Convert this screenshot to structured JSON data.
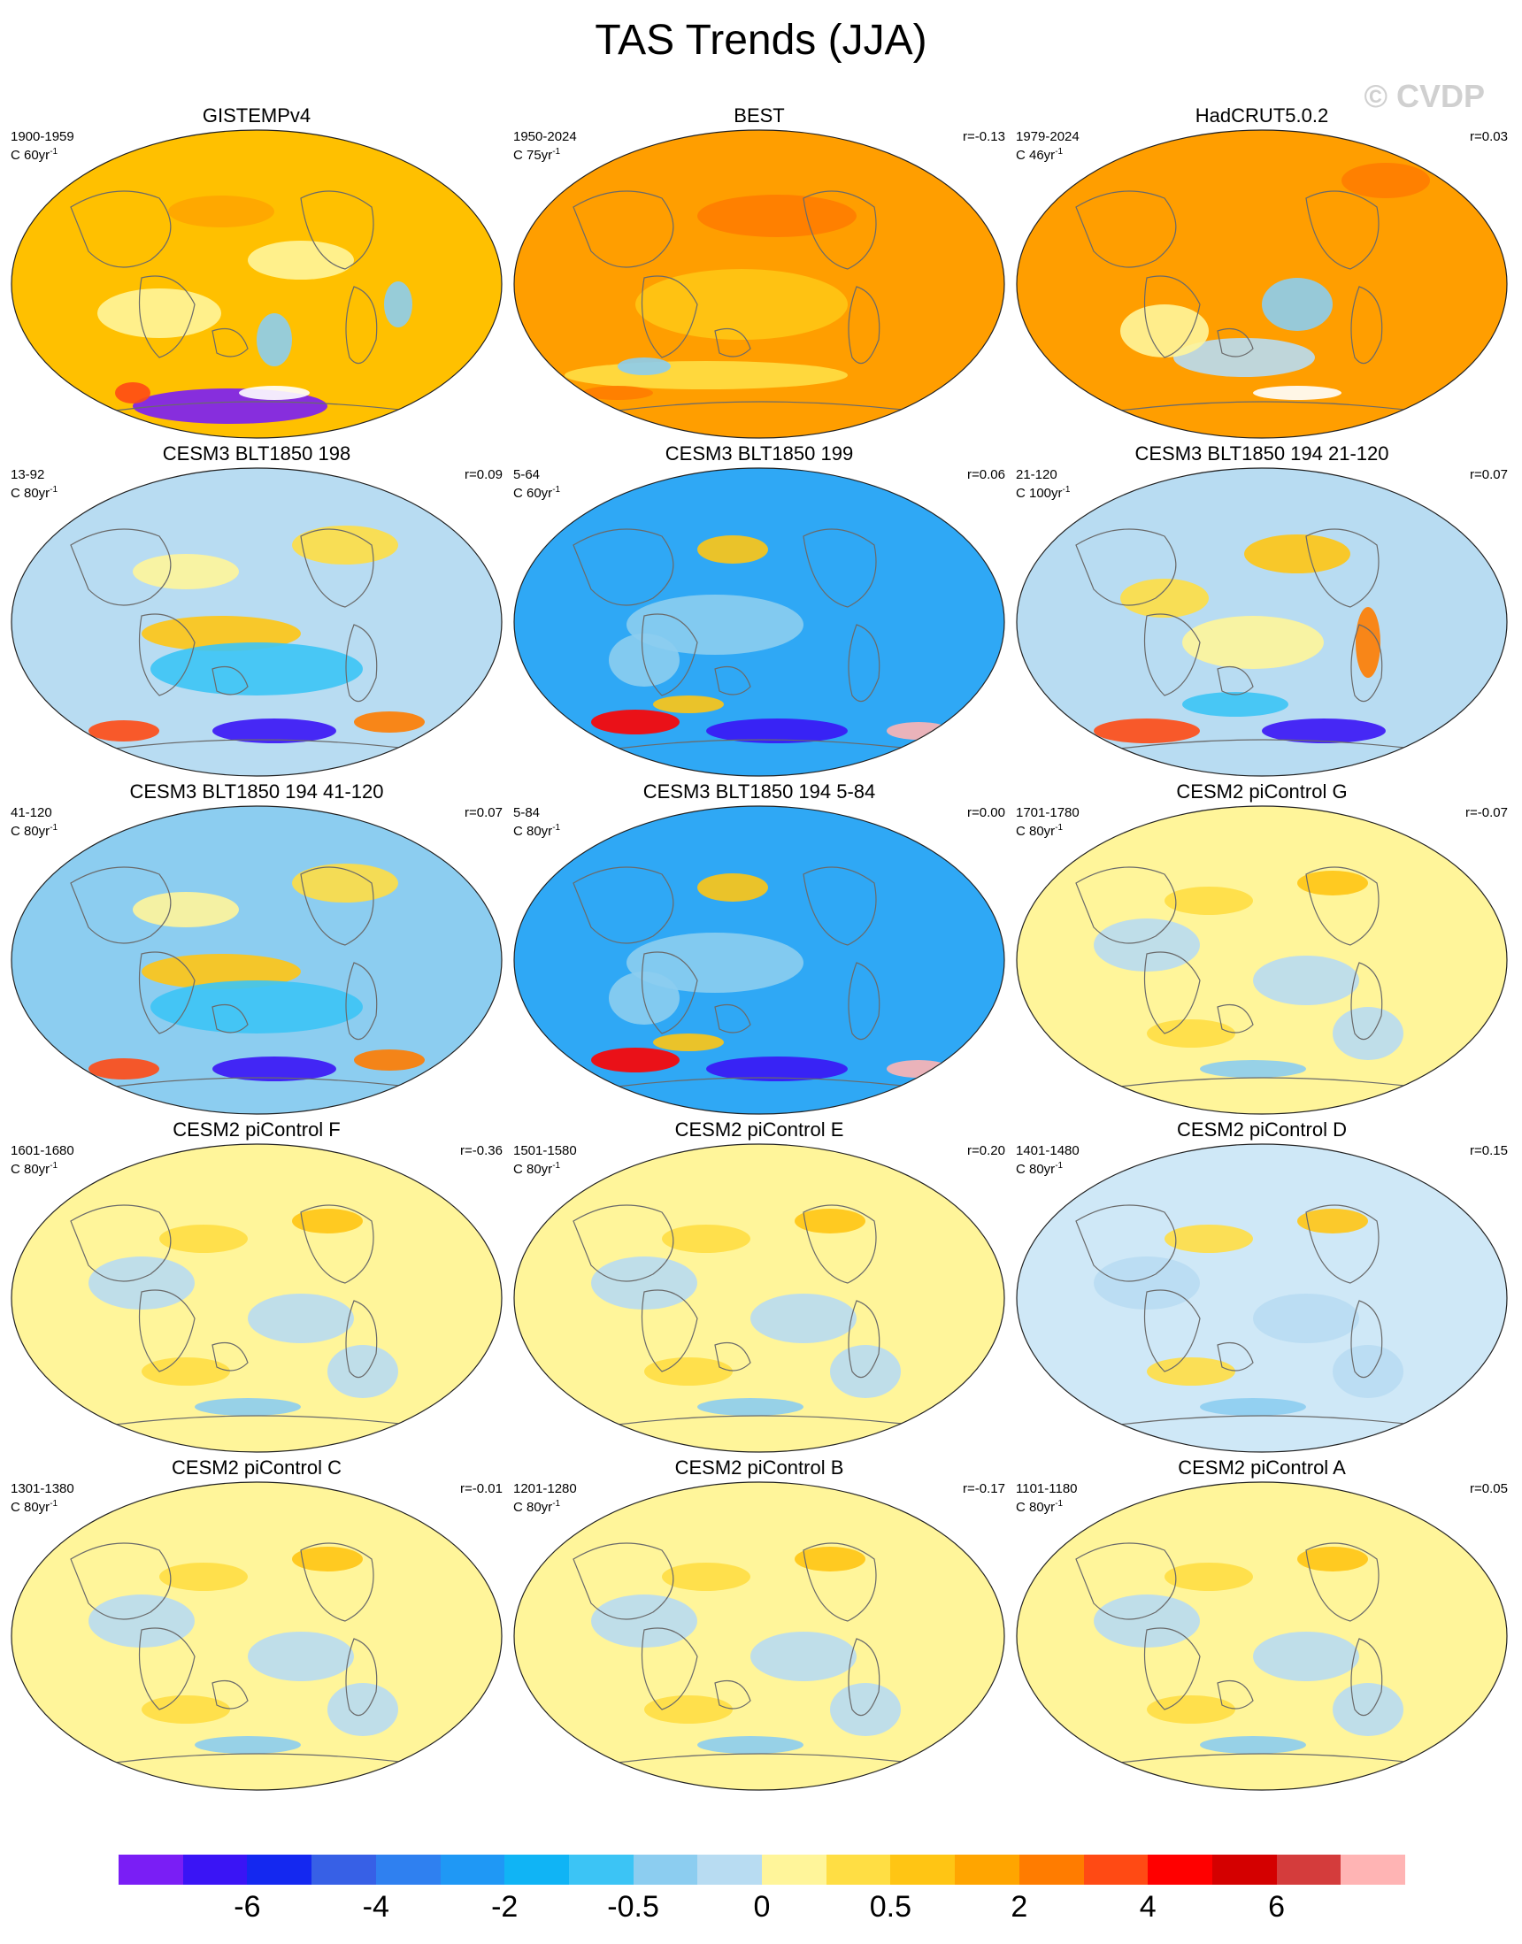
{
  "title": "TAS Trends (JJA)",
  "watermark": "© CVDP",
  "panels": [
    {
      "title": "GISTEMPv4",
      "period": "1900-1959",
      "units_prefix": "C 60yr",
      "units_sup": "-1",
      "corr": "",
      "fill": "#ffc000",
      "pattern": "gistemp"
    },
    {
      "title": "BEST",
      "period": "1950-2024",
      "units_prefix": "C 75yr",
      "units_sup": "-1",
      "corr": "r=-0.13",
      "fill": "#ff9e00",
      "pattern": "best"
    },
    {
      "title": "HadCRUT5.0.2",
      "period": "1979-2024",
      "units_prefix": "C 46yr",
      "units_sup": "-1",
      "corr": "r=0.03",
      "fill": "#ff9e00",
      "pattern": "hadcrut"
    },
    {
      "title": "CESM3 BLT1850 198",
      "period": "13-92",
      "units_prefix": "C 80yr",
      "units_sup": "-1",
      "corr": "r=0.09",
      "fill": "#b8dcf2",
      "pattern": "cold"
    },
    {
      "title": "CESM3 BLT1850 199",
      "period": "5-64",
      "units_prefix": "C 60yr",
      "units_sup": "-1",
      "corr": "r=0.06",
      "fill": "#2fa8f5",
      "pattern": "verycold"
    },
    {
      "title": "CESM3 BLT1850 194 21-120",
      "period": "21-120",
      "units_prefix": "C 100yr",
      "units_sup": "-1",
      "corr": "r=0.07",
      "fill": "#b8dcf2",
      "pattern": "mixed"
    },
    {
      "title": "CESM3 BLT1850 194 41-120",
      "period": "41-120",
      "units_prefix": "C 80yr",
      "units_sup": "-1",
      "corr": "r=0.07",
      "fill": "#8ccdf0",
      "pattern": "cold"
    },
    {
      "title": "CESM3 BLT1850 194 5-84",
      "period": "5-84",
      "units_prefix": "C 80yr",
      "units_sup": "-1",
      "corr": "r=0.00",
      "fill": "#2fa8f5",
      "pattern": "verycold"
    },
    {
      "title": "CESM2 piControl G",
      "period": "1701-1780",
      "units_prefix": "C 80yr",
      "units_sup": "-1",
      "corr": "r=-0.07",
      "fill": "#fff59a",
      "pattern": "neutral"
    },
    {
      "title": "CESM2 piControl F",
      "period": "1601-1680",
      "units_prefix": "C 80yr",
      "units_sup": "-1",
      "corr": "r=-0.36",
      "fill": "#fff59a",
      "pattern": "neutral"
    },
    {
      "title": "CESM2 piControl E",
      "period": "1501-1580",
      "units_prefix": "C 80yr",
      "units_sup": "-1",
      "corr": "r=0.20",
      "fill": "#fff59a",
      "pattern": "neutral"
    },
    {
      "title": "CESM2 piControl D",
      "period": "1401-1480",
      "units_prefix": "C 80yr",
      "units_sup": "-1",
      "corr": "r=0.15",
      "fill": "#cfe8f7",
      "pattern": "neutral"
    },
    {
      "title": "CESM2 piControl C",
      "period": "1301-1380",
      "units_prefix": "C 80yr",
      "units_sup": "-1",
      "corr": "r=-0.01",
      "fill": "#fff59a",
      "pattern": "neutral"
    },
    {
      "title": "CESM2 piControl B",
      "period": "1201-1280",
      "units_prefix": "C 80yr",
      "units_sup": "-1",
      "corr": "r=-0.17",
      "fill": "#fff59a",
      "pattern": "neutral"
    },
    {
      "title": "CESM2 piControl A",
      "period": "1101-1180",
      "units_prefix": "C 80yr",
      "units_sup": "-1",
      "corr": "r=0.05",
      "fill": "#fff59a",
      "pattern": "neutral"
    }
  ],
  "colorbar": {
    "colors": [
      "#7a1ef5",
      "#3a14f5",
      "#1428f0",
      "#3760e6",
      "#2f80f0",
      "#1f98f5",
      "#10b4f5",
      "#3cc4f5",
      "#8ccdf0",
      "#b8dcf2",
      "#fff59a",
      "#ffde44",
      "#ffc514",
      "#ffa500",
      "#ff7c00",
      "#ff4a14",
      "#ff0000",
      "#d40000",
      "#d43c3c",
      "#ffb4b4"
    ],
    "labels": [
      {
        "text": "-6",
        "boundary": 2
      },
      {
        "text": "-4",
        "boundary": 4
      },
      {
        "text": "-2",
        "boundary": 6
      },
      {
        "text": "-0.5",
        "boundary": 8
      },
      {
        "text": "0",
        "boundary": 10
      },
      {
        "text": "0.5",
        "boundary": 12
      },
      {
        "text": "2",
        "boundary": 14
      },
      {
        "text": "4",
        "boundary": 16
      },
      {
        "text": "6",
        "boundary": 18
      }
    ]
  }
}
